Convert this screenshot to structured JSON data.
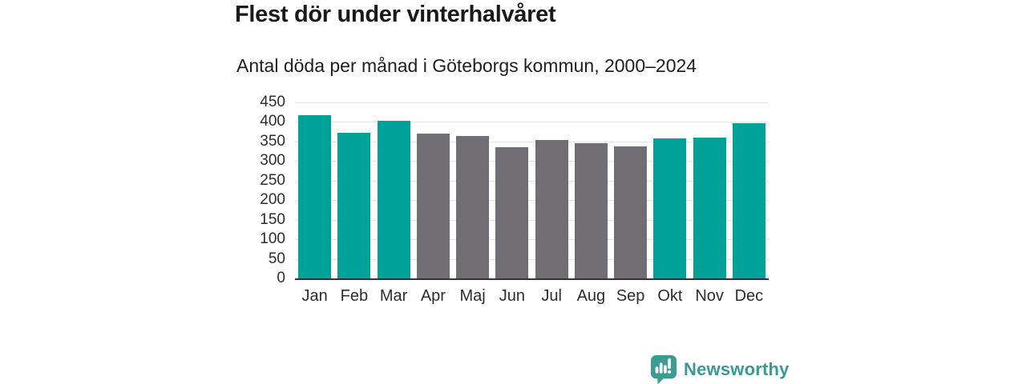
{
  "chart_data": {
    "type": "bar",
    "title": "Flest dör under vinterhalvåret",
    "subtitle": "Antal döda per månad i Göteborgs kommun, 2000–2024",
    "categories": [
      "Jan",
      "Feb",
      "Mar",
      "Apr",
      "Maj",
      "Jun",
      "Jul",
      "Aug",
      "Sep",
      "Okt",
      "Nov",
      "Dec"
    ],
    "values": [
      417,
      373,
      404,
      371,
      365,
      336,
      354,
      345,
      338,
      358,
      360,
      397
    ],
    "bar_colors": [
      "#00a197",
      "#00a197",
      "#00a197",
      "#706e73",
      "#706e73",
      "#706e73",
      "#706e73",
      "#706e73",
      "#706e73",
      "#00a197",
      "#00a197",
      "#00a197"
    ],
    "xlabel": "",
    "ylabel": "",
    "ylim": [
      0,
      450
    ],
    "yticks": [
      450,
      400,
      350,
      300,
      250,
      200,
      150,
      100,
      50,
      0
    ],
    "grid": true,
    "legend": "none"
  },
  "colors": {
    "bar_teal": "#00a197",
    "bar_gray": "#706e73",
    "gridline": "#e4e4e4",
    "axis_line": "#333333",
    "tick_text": "#2d2d2d",
    "title_text": "#1a1a1a",
    "logo_teal": "#3c9c92",
    "brand_text": "#399a93"
  },
  "footer": {
    "brand": "Newsworthy"
  }
}
